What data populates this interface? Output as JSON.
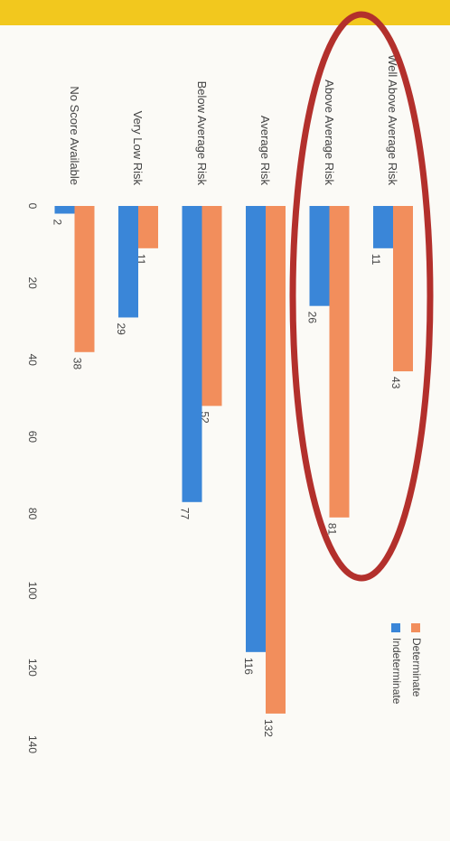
{
  "chart_data": {
    "type": "barh",
    "categories": [
      "Well Above Average Risk",
      "Above Average Risk",
      "Average Risk",
      "Below Average Risk",
      "Very Low Risk",
      "No Score Available"
    ],
    "series": [
      {
        "name": "Determinate",
        "color": "#f28e5c",
        "values": [
          43,
          81,
          132,
          52,
          11,
          38
        ]
      },
      {
        "name": "Indeterminate",
        "color": "#3a86d8",
        "values": [
          11,
          26,
          116,
          77,
          29,
          2
        ]
      }
    ],
    "xlim": [
      0,
      140
    ],
    "xticks": [
      0,
      20,
      40,
      60,
      80,
      100,
      120,
      140
    ],
    "grid": false,
    "legend": "right"
  }
}
